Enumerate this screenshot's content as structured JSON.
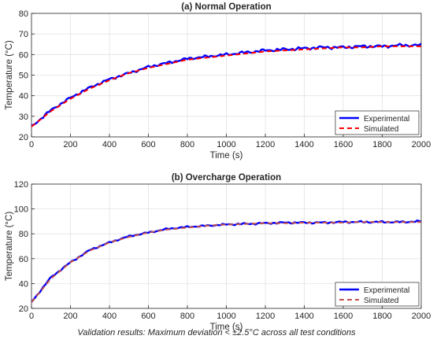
{
  "chart_data": [
    {
      "type": "line",
      "title": "(a) Normal Operation",
      "xlabel": "Time (s)",
      "ylabel": "Temperature (°C)",
      "xlim": [
        0,
        2000
      ],
      "ylim": [
        20,
        80
      ],
      "xticks": [
        0,
        200,
        400,
        600,
        800,
        1000,
        1200,
        1400,
        1600,
        1800,
        2000
      ],
      "yticks": [
        20,
        30,
        40,
        50,
        60,
        70,
        80
      ],
      "grid": true,
      "legend": "bottom-right",
      "x": [
        0,
        100,
        200,
        300,
        400,
        500,
        600,
        700,
        800,
        900,
        1000,
        1100,
        1200,
        1300,
        1400,
        1500,
        1600,
        1700,
        1800,
        1900,
        2000
      ],
      "series": [
        {
          "name": "Experimental",
          "color": "#0000ff",
          "style": "solid",
          "values": [
            25,
            33,
            39,
            44,
            48,
            51,
            54,
            56,
            58,
            59,
            60,
            61,
            62,
            62.5,
            63,
            63.5,
            63.5,
            64,
            64,
            64.5,
            64.5
          ]
        },
        {
          "name": "Simulated",
          "color": "#ff0000",
          "style": "dashed",
          "values": [
            25,
            32.5,
            38.5,
            43.5,
            47.5,
            51,
            53.5,
            55.5,
            57.5,
            58.5,
            59.5,
            60.5,
            61.5,
            62,
            62.5,
            63,
            63.5,
            63.5,
            64,
            64,
            64
          ]
        }
      ]
    },
    {
      "type": "line",
      "title": "(b) Overcharge Operation",
      "xlabel": "Time (s)",
      "ylabel": "Temperature (°C)",
      "xlim": [
        0,
        2000
      ],
      "ylim": [
        20,
        120
      ],
      "xticks": [
        0,
        200,
        400,
        600,
        800,
        1000,
        1200,
        1400,
        1600,
        1800,
        2000
      ],
      "yticks": [
        20,
        40,
        60,
        80,
        100,
        120
      ],
      "grid": true,
      "legend": "bottom-right",
      "x": [
        0,
        100,
        200,
        300,
        400,
        500,
        600,
        700,
        800,
        900,
        1000,
        1100,
        1200,
        1300,
        1400,
        1500,
        1600,
        1700,
        1800,
        1900,
        2000
      ],
      "series": [
        {
          "name": "Experimental",
          "color": "#0000ff",
          "style": "solid",
          "values": [
            25,
            45,
            57,
            67,
            73,
            78,
            81,
            84,
            85.5,
            86.5,
            87.5,
            88,
            88.5,
            89,
            89,
            89,
            89.5,
            89.5,
            89.5,
            89.5,
            90
          ]
        },
        {
          "name": "Simulated",
          "color": "#c0504d",
          "style": "dashed",
          "values": [
            25,
            44,
            57,
            66.5,
            73,
            77.5,
            81,
            83.5,
            85,
            86.5,
            87.5,
            88,
            88.5,
            88.5,
            89,
            89,
            89,
            89.5,
            89.5,
            89.5,
            89.5
          ]
        }
      ]
    }
  ],
  "caption": "Validation results: Maximum deviation < ±2.5°C across all test conditions"
}
